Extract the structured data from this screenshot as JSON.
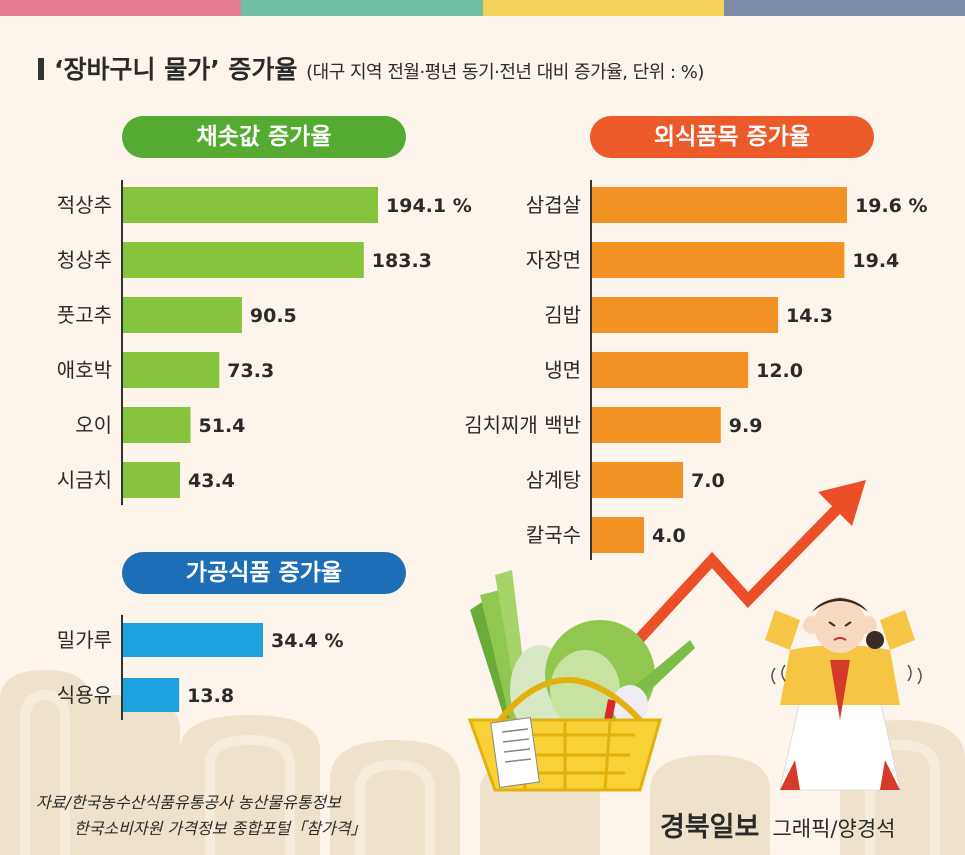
{
  "colors": {
    "topbar": [
      "#e47c93",
      "#6ebfa4",
      "#f3d15b",
      "#7b8ba5"
    ],
    "green_bar": "#86c43d",
    "green_pill": "#55aa32",
    "orange_bar": "#f39224",
    "orange_pill": "#ec5a29",
    "blue_bar": "#1ba2df",
    "blue_pill": "#1e6db7",
    "arrow": "#ea4f27"
  },
  "header": {
    "title": "‘장바구니 물가’ 증가율",
    "subtitle": "(대구 지역 전월·평년 동기·전년 대비 증가율, 단위 : %)"
  },
  "chart_data": [
    {
      "type": "bar",
      "orientation": "horizontal",
      "title": "채솟값 증가율",
      "categories": [
        "적상추",
        "청상추",
        "풋고추",
        "애호박",
        "오이",
        "시금치"
      ],
      "values": [
        194.1,
        183.3,
        90.5,
        73.3,
        51.4,
        43.4
      ],
      "labels": [
        "194.1 %",
        "183.3",
        "90.5",
        "73.3",
        "51.4",
        "43.4"
      ],
      "unit": "%"
    },
    {
      "type": "bar",
      "orientation": "horizontal",
      "title": "외식품목 증가율",
      "categories": [
        "삼겹살",
        "자장면",
        "김밥",
        "냉면",
        "김치찌개 백반",
        "삼계탕",
        "칼국수"
      ],
      "values": [
        19.6,
        19.4,
        14.3,
        12.0,
        9.9,
        7.0,
        4.0
      ],
      "labels": [
        "19.6 %",
        "19.4",
        "14.3",
        "12.0",
        "9.9",
        "7.0",
        "4.0"
      ],
      "unit": "%"
    },
    {
      "type": "bar",
      "orientation": "horizontal",
      "title": "가공식품 증가율",
      "categories": [
        "밀가루",
        "식용유"
      ],
      "values": [
        34.4,
        13.8
      ],
      "labels": [
        "34.4 %",
        "13.8"
      ],
      "unit": "%"
    }
  ],
  "footer": {
    "source_line1": "자료/한국농수산식품유통공사 농산물유통정보",
    "source_line2": "한국소비자원 가격정보 종합포털「참가격」",
    "brand": "경북일보",
    "credit": "그래픽/양경석"
  }
}
